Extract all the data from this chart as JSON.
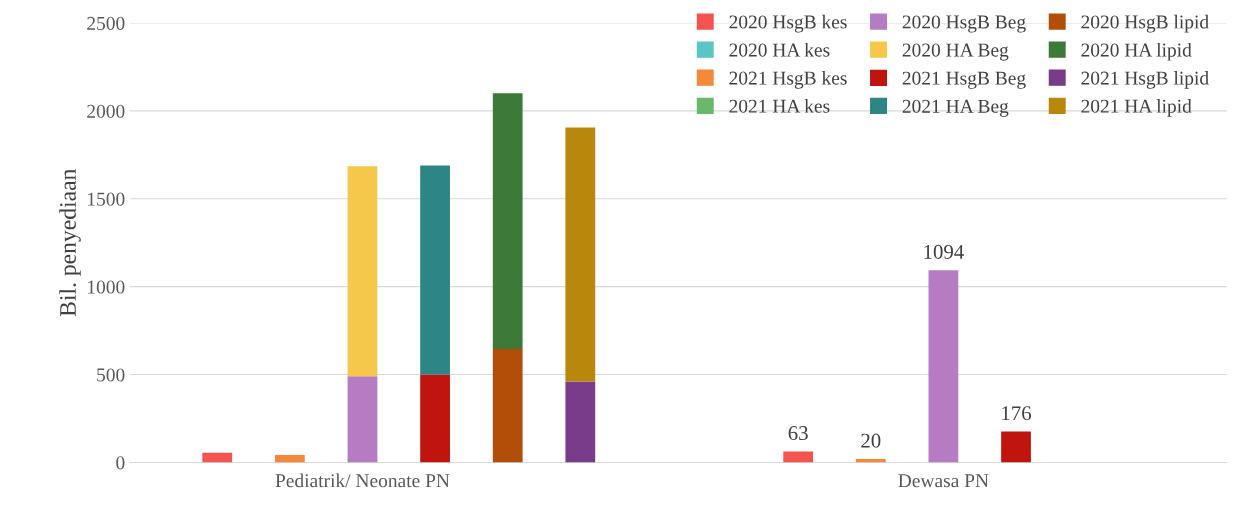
{
  "chart_data": {
    "type": "bar",
    "stacked": true,
    "ylabel": "Bil. penyediaan",
    "categories": [
      null,
      null,
      "Pediatrik/ Neonate PN",
      null,
      null,
      null,
      null,
      null,
      null,
      null,
      "Dewasa PN",
      null,
      null,
      null
    ],
    "ylim": [
      0,
      2500
    ],
    "yticks": [
      0,
      500,
      1000,
      1500,
      2000,
      2500
    ],
    "grid": "y",
    "legend": "top right",
    "series": [
      {
        "name": "2020 HsgB kes",
        "color": "#f4534f",
        "values": [
          55,
          null,
          null,
          null,
          null,
          null,
          null,
          null,
          63,
          null,
          null,
          null,
          null,
          null
        ],
        "value_labels": [
          null,
          null,
          null,
          null,
          null,
          null,
          null,
          null,
          "63",
          null,
          null,
          null,
          null,
          null
        ]
      },
      {
        "name": "2020 HA kes",
        "color": "#5bc4c4",
        "values": [
          null,
          null,
          null,
          null,
          null,
          null,
          null,
          null,
          null,
          null,
          null,
          null,
          null,
          null
        ]
      },
      {
        "name": "2021 HsgB kes",
        "color": "#f5883a",
        "values": [
          null,
          43,
          null,
          null,
          null,
          null,
          null,
          null,
          null,
          20,
          null,
          null,
          null,
          null
        ],
        "value_labels": [
          null,
          null,
          null,
          null,
          null,
          null,
          null,
          null,
          null,
          "20",
          null,
          null,
          null,
          null
        ]
      },
      {
        "name": "2021 HA kes",
        "color": "#6ab86a",
        "values": [
          null,
          null,
          null,
          null,
          null,
          null,
          null,
          null,
          null,
          null,
          null,
          null,
          null,
          null
        ]
      },
      {
        "name": "2020 HsgB Beg",
        "color": "#b57cc4",
        "values": [
          null,
          null,
          490,
          null,
          null,
          null,
          null,
          null,
          null,
          null,
          1094,
          null,
          null,
          null
        ],
        "value_labels": [
          null,
          null,
          null,
          null,
          null,
          null,
          null,
          null,
          null,
          null,
          "1094",
          null,
          null,
          null
        ]
      },
      {
        "name": "2020 HA Beg",
        "color": "#f5c84c",
        "values": [
          null,
          null,
          1195,
          null,
          null,
          null,
          null,
          null,
          null,
          null,
          null,
          null,
          null,
          null
        ]
      },
      {
        "name": "2021 HsgB Beg",
        "color": "#c0140f",
        "values": [
          null,
          null,
          null,
          500,
          null,
          null,
          null,
          null,
          null,
          null,
          null,
          176,
          null,
          null
        ],
        "value_labels": [
          null,
          null,
          null,
          null,
          null,
          null,
          null,
          null,
          null,
          null,
          null,
          "176",
          null,
          null
        ]
      },
      {
        "name": "2021 HA Beg",
        "color": "#2e8585",
        "values": [
          null,
          null,
          null,
          1190,
          null,
          null,
          null,
          null,
          null,
          null,
          null,
          null,
          null,
          null
        ]
      },
      {
        "name": "2020 HsgB lipid",
        "color": "#b24e07",
        "values": [
          null,
          null,
          null,
          null,
          645,
          null,
          null,
          null,
          null,
          null,
          null,
          null,
          null,
          null
        ]
      },
      {
        "name": "2020 HA lipid",
        "color": "#3d7a37",
        "values": [
          null,
          null,
          null,
          null,
          1455,
          null,
          null,
          null,
          null,
          null,
          null,
          null,
          null,
          null
        ]
      },
      {
        "name": "2021 HsgB lipid",
        "color": "#783c8a",
        "values": [
          null,
          null,
          null,
          null,
          null,
          460,
          null,
          null,
          null,
          null,
          null,
          null,
          null,
          null
        ]
      },
      {
        "name": "2021 HA lipid",
        "color": "#b8870b",
        "values": [
          null,
          null,
          null,
          null,
          null,
          1445,
          null,
          null,
          null,
          null,
          null,
          null,
          null,
          null
        ]
      }
    ]
  }
}
